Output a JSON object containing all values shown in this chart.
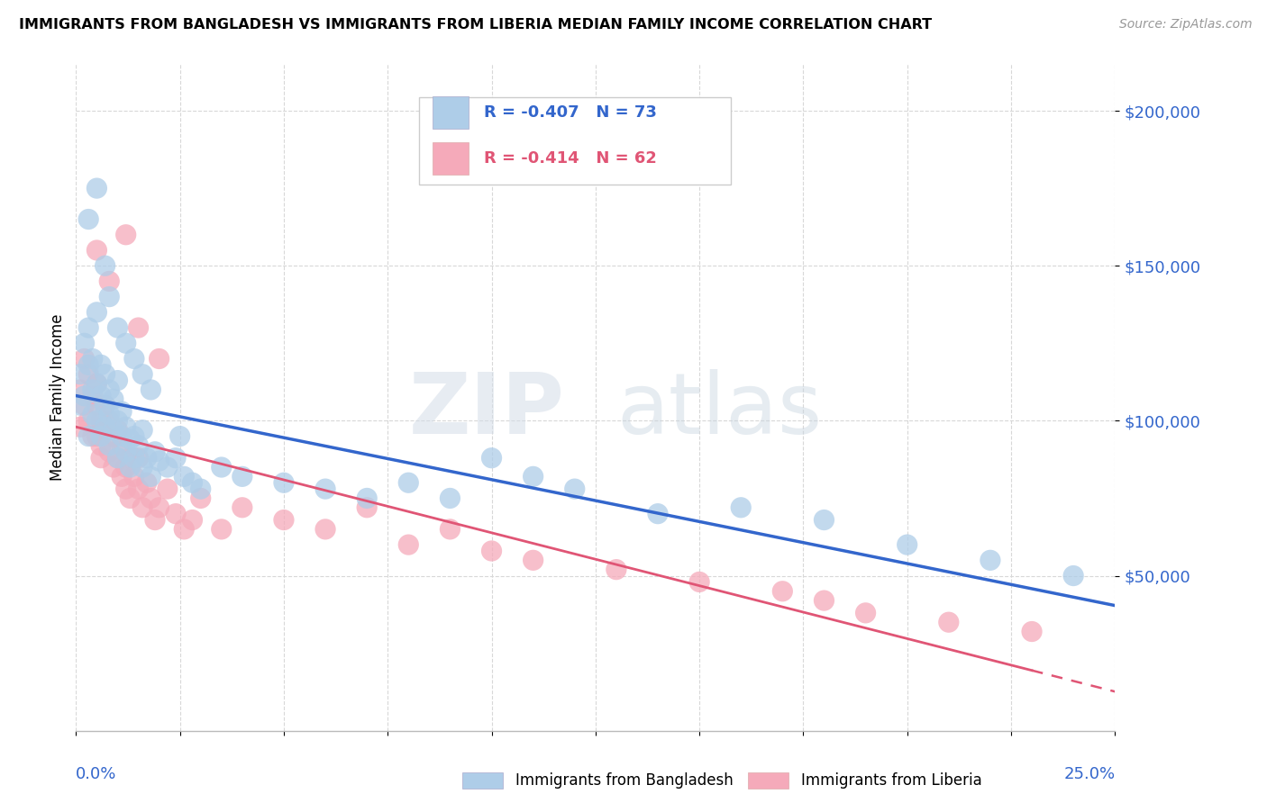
{
  "title": "IMMIGRANTS FROM BANGLADESH VS IMMIGRANTS FROM LIBERIA MEDIAN FAMILY INCOME CORRELATION CHART",
  "source": "Source: ZipAtlas.com",
  "ylabel": "Median Family Income",
  "xlim": [
    0.0,
    0.25
  ],
  "ylim": [
    0,
    215000
  ],
  "bangladesh_color": "#aecde8",
  "liberia_color": "#f5aaba",
  "bangladesh_line_color": "#3366cc",
  "liberia_line_color": "#e05575",
  "legend_text_color": "#3366cc",
  "R_bangladesh": -0.407,
  "N_bangladesh": 73,
  "R_liberia": -0.414,
  "N_liberia": 62,
  "watermark_zip": "ZIP",
  "watermark_atlas": "atlas",
  "ytick_vals": [
    50000,
    100000,
    150000,
    200000
  ],
  "ytick_labels": [
    "$50,000",
    "$100,000",
    "$150,000",
    "$200,000"
  ],
  "grid_color": "#d8d8d8",
  "bg_color": "#ffffff",
  "bangladesh_x": [
    0.001,
    0.001,
    0.002,
    0.002,
    0.003,
    0.003,
    0.003,
    0.004,
    0.004,
    0.004,
    0.005,
    0.005,
    0.005,
    0.006,
    0.006,
    0.006,
    0.007,
    0.007,
    0.007,
    0.008,
    0.008,
    0.008,
    0.009,
    0.009,
    0.01,
    0.01,
    0.01,
    0.011,
    0.011,
    0.012,
    0.012,
    0.013,
    0.013,
    0.014,
    0.014,
    0.015,
    0.016,
    0.016,
    0.017,
    0.018,
    0.019,
    0.02,
    0.022,
    0.024,
    0.026,
    0.028,
    0.03,
    0.035,
    0.04,
    0.05,
    0.06,
    0.07,
    0.08,
    0.09,
    0.1,
    0.11,
    0.12,
    0.14,
    0.16,
    0.18,
    0.2,
    0.22,
    0.24,
    0.003,
    0.005,
    0.007,
    0.008,
    0.01,
    0.012,
    0.014,
    0.016,
    0.018,
    0.025
  ],
  "bangladesh_y": [
    115000,
    105000,
    125000,
    108000,
    95000,
    130000,
    118000,
    110000,
    102000,
    120000,
    135000,
    100000,
    112000,
    108000,
    95000,
    118000,
    105000,
    98000,
    115000,
    102000,
    92000,
    110000,
    97000,
    107000,
    100000,
    88000,
    113000,
    95000,
    103000,
    90000,
    98000,
    85000,
    94000,
    88000,
    95000,
    92000,
    85000,
    97000,
    88000,
    82000,
    90000,
    87000,
    85000,
    88000,
    82000,
    80000,
    78000,
    85000,
    82000,
    80000,
    78000,
    75000,
    80000,
    75000,
    88000,
    82000,
    78000,
    70000,
    72000,
    68000,
    60000,
    55000,
    50000,
    165000,
    175000,
    150000,
    140000,
    130000,
    125000,
    120000,
    115000,
    110000,
    95000
  ],
  "liberia_x": [
    0.001,
    0.001,
    0.002,
    0.002,
    0.003,
    0.003,
    0.004,
    0.004,
    0.005,
    0.005,
    0.005,
    0.006,
    0.006,
    0.006,
    0.007,
    0.007,
    0.008,
    0.008,
    0.009,
    0.009,
    0.01,
    0.01,
    0.011,
    0.011,
    0.012,
    0.012,
    0.013,
    0.013,
    0.014,
    0.015,
    0.015,
    0.016,
    0.017,
    0.018,
    0.019,
    0.02,
    0.022,
    0.024,
    0.026,
    0.028,
    0.03,
    0.035,
    0.04,
    0.05,
    0.06,
    0.07,
    0.08,
    0.09,
    0.1,
    0.11,
    0.13,
    0.15,
    0.17,
    0.18,
    0.19,
    0.21,
    0.23,
    0.005,
    0.008,
    0.012,
    0.015,
    0.02
  ],
  "liberia_y": [
    110000,
    98000,
    120000,
    105000,
    100000,
    115000,
    95000,
    108000,
    112000,
    95000,
    105000,
    92000,
    100000,
    88000,
    97000,
    105000,
    90000,
    100000,
    85000,
    95000,
    88000,
    97000,
    82000,
    92000,
    85000,
    78000,
    88000,
    75000,
    82000,
    78000,
    88000,
    72000,
    80000,
    75000,
    68000,
    72000,
    78000,
    70000,
    65000,
    68000,
    75000,
    65000,
    72000,
    68000,
    65000,
    72000,
    60000,
    65000,
    58000,
    55000,
    52000,
    48000,
    45000,
    42000,
    38000,
    35000,
    32000,
    155000,
    145000,
    160000,
    130000,
    120000
  ]
}
